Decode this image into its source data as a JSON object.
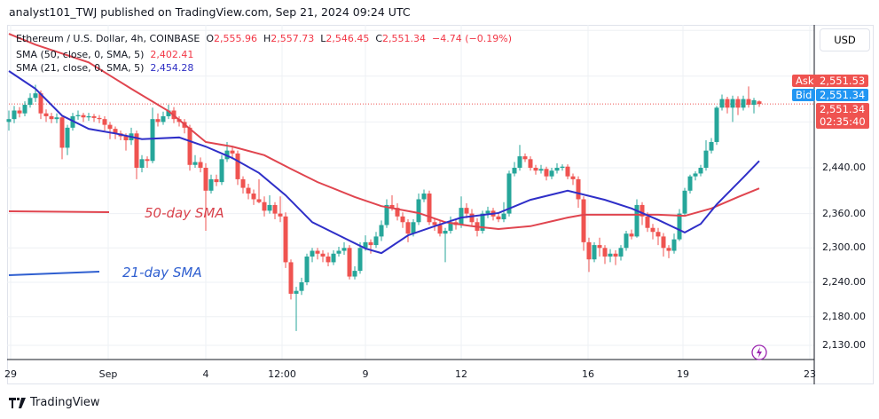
{
  "header": {
    "published": "analyst101_TWJ published on TradingView.com, Sep 21, 2024 09:24 UTC"
  },
  "legend": {
    "symbol": "Ethereum / U.S. Dollar, 4h, COINBASE",
    "o_label": "O",
    "o": "2,555.96",
    "h_label": "H",
    "h": "2,557.73",
    "l_label": "L",
    "l": "2,546.45",
    "c_label": "C",
    "c": "2,551.34",
    "change": "−4.74 (−0.19%)",
    "sma50_label": "SMA (50, close, 0, SMA, 5)",
    "sma50_value": "2,402.41",
    "sma21_label": "SMA (21, close, 0, SMA, 5)",
    "sma21_value": "2,454.28"
  },
  "price_axis": {
    "currency": "USD",
    "ticks": [
      "2,440.00",
      "2,360.00",
      "2,300.00",
      "2,240.00",
      "2,180.00",
      "2,130.00"
    ],
    "ask_label": "Ask",
    "ask": "2,551.53",
    "bid_label": "Bid",
    "bid": "2,551.34",
    "last": "2,551.34",
    "countdown": "02:35:40"
  },
  "time_axis": {
    "ticks": [
      "29",
      "Sep",
      "4",
      "12:00",
      "9",
      "12",
      "16",
      "19",
      "23"
    ]
  },
  "annotations": {
    "sma50": "50-day SMA",
    "sma21": "21-day SMA"
  },
  "branding": {
    "logo_text": "TradingView"
  },
  "colors": {
    "up": "#26a69a",
    "down": "#ef5350",
    "sma50": "#e0454f",
    "sma21": "#2f2fc8",
    "ask": "#ef5350",
    "bid": "#2196f3",
    "lightning": "#9c27b0"
  },
  "chart_data": {
    "type": "candlestick",
    "title": "Ethereum / U.S. Dollar, 4h, COINBASE",
    "interval": "4h",
    "ylim": [
      2120,
      2700
    ],
    "grid": true,
    "ohlc": [
      [
        2520,
        2540,
        2505,
        2525
      ],
      [
        2525,
        2548,
        2518,
        2540
      ],
      [
        2540,
        2546,
        2528,
        2535
      ],
      [
        2535,
        2556,
        2530,
        2550
      ],
      [
        2550,
        2570,
        2545,
        2562
      ],
      [
        2562,
        2585,
        2555,
        2570
      ],
      [
        2570,
        2575,
        2525,
        2535
      ],
      [
        2535,
        2542,
        2520,
        2530
      ],
      [
        2530,
        2536,
        2518,
        2525
      ],
      [
        2525,
        2535,
        2518,
        2528
      ],
      [
        2528,
        2532,
        2455,
        2475
      ],
      [
        2475,
        2515,
        2462,
        2510
      ],
      [
        2510,
        2536,
        2505,
        2530
      ],
      [
        2530,
        2540,
        2524,
        2532
      ],
      [
        2532,
        2536,
        2520,
        2528
      ],
      [
        2528,
        2536,
        2522,
        2530
      ],
      [
        2530,
        2534,
        2520,
        2527
      ],
      [
        2527,
        2532,
        2518,
        2525
      ],
      [
        2525,
        2530,
        2505,
        2515
      ],
      [
        2515,
        2520,
        2490,
        2508
      ],
      [
        2508,
        2512,
        2490,
        2500
      ],
      [
        2500,
        2505,
        2488,
        2495
      ],
      [
        2495,
        2500,
        2470,
        2488
      ],
      [
        2488,
        2510,
        2480,
        2500
      ],
      [
        2500,
        2505,
        2420,
        2440
      ],
      [
        2440,
        2462,
        2432,
        2455
      ],
      [
        2455,
        2460,
        2440,
        2452
      ],
      [
        2452,
        2545,
        2448,
        2525
      ],
      [
        2525,
        2535,
        2512,
        2520
      ],
      [
        2520,
        2538,
        2515,
        2530
      ],
      [
        2530,
        2550,
        2525,
        2540
      ],
      [
        2540,
        2546,
        2518,
        2525
      ],
      [
        2525,
        2530,
        2512,
        2520
      ],
      [
        2520,
        2525,
        2500,
        2510
      ],
      [
        2510,
        2515,
        2435,
        2445
      ],
      [
        2445,
        2462,
        2440,
        2450
      ],
      [
        2450,
        2458,
        2432,
        2440
      ],
      [
        2440,
        2448,
        2330,
        2400
      ],
      [
        2400,
        2428,
        2395,
        2420
      ],
      [
        2420,
        2428,
        2408,
        2415
      ],
      [
        2415,
        2462,
        2410,
        2455
      ],
      [
        2455,
        2485,
        2450,
        2470
      ],
      [
        2470,
        2478,
        2455,
        2465
      ],
      [
        2465,
        2470,
        2410,
        2420
      ],
      [
        2420,
        2425,
        2395,
        2405
      ],
      [
        2405,
        2412,
        2385,
        2395
      ],
      [
        2395,
        2402,
        2375,
        2385
      ],
      [
        2385,
        2420,
        2378,
        2380
      ],
      [
        2380,
        2390,
        2355,
        2365
      ],
      [
        2365,
        2392,
        2360,
        2375
      ],
      [
        2375,
        2380,
        2350,
        2360
      ],
      [
        2360,
        2390,
        2345,
        2355
      ],
      [
        2355,
        2362,
        2265,
        2275
      ],
      [
        2275,
        2280,
        2210,
        2220
      ],
      [
        2220,
        2232,
        2155,
        2225
      ],
      [
        2225,
        2248,
        2218,
        2240
      ],
      [
        2240,
        2290,
        2235,
        2285
      ],
      [
        2285,
        2300,
        2275,
        2295
      ],
      [
        2295,
        2300,
        2280,
        2290
      ],
      [
        2290,
        2296,
        2275,
        2285
      ],
      [
        2285,
        2292,
        2268,
        2275
      ],
      [
        2275,
        2296,
        2270,
        2290
      ],
      [
        2290,
        2302,
        2285,
        2295
      ],
      [
        2295,
        2310,
        2288,
        2300
      ],
      [
        2300,
        2305,
        2245,
        2250
      ],
      [
        2250,
        2268,
        2245,
        2260
      ],
      [
        2260,
        2310,
        2255,
        2300
      ],
      [
        2300,
        2322,
        2295,
        2310
      ],
      [
        2310,
        2315,
        2290,
        2305
      ],
      [
        2305,
        2328,
        2300,
        2320
      ],
      [
        2320,
        2348,
        2312,
        2340
      ],
      [
        2340,
        2385,
        2335,
        2375
      ],
      [
        2375,
        2392,
        2365,
        2370
      ],
      [
        2370,
        2378,
        2348,
        2355
      ],
      [
        2355,
        2362,
        2335,
        2345
      ],
      [
        2345,
        2350,
        2310,
        2325
      ],
      [
        2325,
        2350,
        2320,
        2345
      ],
      [
        2345,
        2395,
        2340,
        2385
      ],
      [
        2385,
        2402,
        2380,
        2395
      ],
      [
        2395,
        2400,
        2340,
        2345
      ],
      [
        2345,
        2352,
        2330,
        2340
      ],
      [
        2340,
        2348,
        2320,
        2325
      ],
      [
        2325,
        2335,
        2275,
        2330
      ],
      [
        2330,
        2355,
        2325,
        2345
      ],
      [
        2345,
        2350,
        2332,
        2340
      ],
      [
        2340,
        2390,
        2335,
        2370
      ],
      [
        2370,
        2378,
        2352,
        2360
      ],
      [
        2360,
        2368,
        2338,
        2345
      ],
      [
        2345,
        2352,
        2320,
        2330
      ],
      [
        2330,
        2365,
        2325,
        2360
      ],
      [
        2360,
        2372,
        2352,
        2365
      ],
      [
        2365,
        2370,
        2348,
        2355
      ],
      [
        2355,
        2362,
        2345,
        2350
      ],
      [
        2350,
        2380,
        2345,
        2360
      ],
      [
        2360,
        2435,
        2355,
        2430
      ],
      [
        2430,
        2450,
        2425,
        2440
      ],
      [
        2440,
        2480,
        2435,
        2460
      ],
      [
        2460,
        2465,
        2450,
        2455
      ],
      [
        2455,
        2460,
        2435,
        2440
      ],
      [
        2440,
        2445,
        2428,
        2435
      ],
      [
        2435,
        2445,
        2430,
        2438
      ],
      [
        2438,
        2442,
        2418,
        2425
      ],
      [
        2425,
        2440,
        2420,
        2435
      ],
      [
        2435,
        2448,
        2430,
        2440
      ],
      [
        2440,
        2446,
        2435,
        2442
      ],
      [
        2442,
        2446,
        2420,
        2425
      ],
      [
        2425,
        2430,
        2410,
        2420
      ],
      [
        2420,
        2425,
        2370,
        2385
      ],
      [
        2385,
        2390,
        2295,
        2310
      ],
      [
        2310,
        2318,
        2258,
        2280
      ],
      [
        2280,
        2310,
        2275,
        2305
      ],
      [
        2305,
        2318,
        2285,
        2300
      ],
      [
        2300,
        2305,
        2272,
        2285
      ],
      [
        2285,
        2298,
        2275,
        2290
      ],
      [
        2290,
        2296,
        2270,
        2285
      ],
      [
        2285,
        2305,
        2278,
        2300
      ],
      [
        2300,
        2330,
        2295,
        2325
      ],
      [
        2325,
        2332,
        2315,
        2320
      ],
      [
        2320,
        2385,
        2318,
        2375
      ],
      [
        2375,
        2380,
        2340,
        2355
      ],
      [
        2355,
        2362,
        2328,
        2335
      ],
      [
        2335,
        2342,
        2315,
        2328
      ],
      [
        2328,
        2335,
        2305,
        2320
      ],
      [
        2320,
        2326,
        2285,
        2300
      ],
      [
        2300,
        2305,
        2282,
        2295
      ],
      [
        2295,
        2325,
        2290,
        2315
      ],
      [
        2315,
        2368,
        2312,
        2360
      ],
      [
        2360,
        2405,
        2355,
        2400
      ],
      [
        2400,
        2428,
        2395,
        2425
      ],
      [
        2425,
        2434,
        2418,
        2430
      ],
      [
        2430,
        2445,
        2425,
        2440
      ],
      [
        2440,
        2488,
        2435,
        2470
      ],
      [
        2470,
        2492,
        2465,
        2485
      ],
      [
        2485,
        2548,
        2480,
        2545
      ],
      [
        2545,
        2568,
        2540,
        2560
      ],
      [
        2560,
        2564,
        2535,
        2545
      ],
      [
        2545,
        2566,
        2520,
        2560
      ],
      [
        2560,
        2565,
        2532,
        2545
      ],
      [
        2545,
        2566,
        2540,
        2560
      ],
      [
        2560,
        2582,
        2545,
        2550
      ],
      [
        2550,
        2562,
        2535,
        2558
      ],
      [
        2555.96,
        2557.73,
        2546.45,
        2551.34
      ]
    ],
    "series": [
      {
        "name": "SMA (50, close, 0, SMA, 5)",
        "points": [
          [
            0,
            2674
          ],
          [
            5,
            2655
          ],
          [
            15,
            2624
          ],
          [
            23,
            2578
          ],
          [
            30,
            2539
          ],
          [
            37,
            2485
          ],
          [
            42,
            2477
          ],
          [
            48,
            2462
          ],
          [
            53,
            2438
          ],
          [
            58,
            2415
          ],
          [
            65,
            2389
          ],
          [
            70,
            2373
          ],
          [
            77,
            2361
          ],
          [
            82,
            2345
          ],
          [
            87,
            2338
          ],
          [
            92,
            2333
          ],
          [
            98,
            2338
          ],
          [
            105,
            2353
          ],
          [
            108,
            2358
          ],
          [
            115,
            2358
          ],
          [
            122,
            2358
          ],
          [
            127,
            2356
          ],
          [
            132,
            2369
          ],
          [
            137,
            2389
          ],
          [
            141,
            2404
          ]
        ]
      },
      {
        "name": "SMA (21, close, 0, SMA, 5)",
        "points": [
          [
            0,
            2609
          ],
          [
            5,
            2578
          ],
          [
            10,
            2531
          ],
          [
            15,
            2508
          ],
          [
            20,
            2500
          ],
          [
            25,
            2490
          ],
          [
            32,
            2493
          ],
          [
            37,
            2477
          ],
          [
            42,
            2457
          ],
          [
            47,
            2431
          ],
          [
            52,
            2392
          ],
          [
            57,
            2345
          ],
          [
            62,
            2322
          ],
          [
            67,
            2299
          ],
          [
            70,
            2291
          ],
          [
            75,
            2322
          ],
          [
            80,
            2338
          ],
          [
            85,
            2353
          ],
          [
            92,
            2361
          ],
          [
            98,
            2384
          ],
          [
            105,
            2400
          ],
          [
            112,
            2384
          ],
          [
            117,
            2369
          ],
          [
            122,
            2349
          ],
          [
            127,
            2327
          ],
          [
            130,
            2342
          ],
          [
            133,
            2376
          ],
          [
            138,
            2423
          ],
          [
            141,
            2452
          ]
        ]
      }
    ]
  }
}
